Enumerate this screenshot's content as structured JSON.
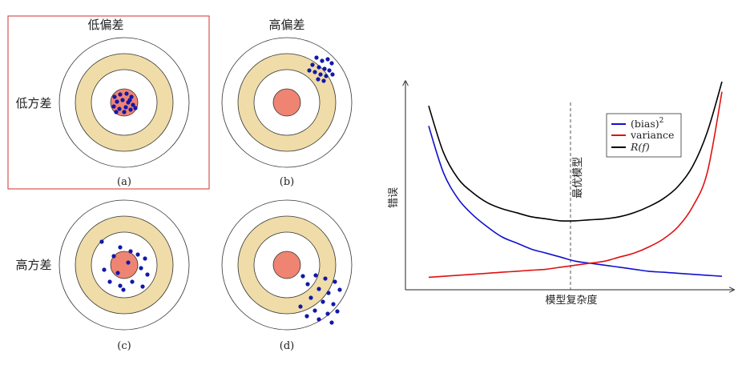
{
  "labels": {
    "col_low_bias": "低偏差",
    "col_high_bias": "高偏差",
    "row_low_variance": "低方差",
    "row_high_variance": "高方差",
    "cap_a": "(a)",
    "cap_b": "(b)",
    "cap_c": "(c)",
    "cap_d": "(d)"
  },
  "chart": {
    "ylabel": "错误",
    "xlabel": "模型复杂度",
    "optimal_label": "最优模型",
    "legend": [
      "(bias)",
      "variance",
      "R(f)"
    ],
    "legend_superscript": "2"
  },
  "colors": {
    "target_fill": "#efdca8",
    "bullseye": "#ef8472",
    "dot": "#1118a8",
    "frame": "#d9534f",
    "bias_line": "#1010d0",
    "variance_line": "#e01010",
    "risk_line": "#000000"
  },
  "chart_data": {
    "type": "line",
    "xlabel": "模型复杂度",
    "ylabel": "错误",
    "x": [
      0.0,
      0.05,
      0.1,
      0.15,
      0.2,
      0.25,
      0.3,
      0.35,
      0.4,
      0.45,
      0.5,
      0.55,
      0.6,
      0.65,
      0.7,
      0.75,
      0.8,
      0.85,
      0.9,
      0.95,
      1.0
    ],
    "series": [
      {
        "name": "(bias)²",
        "values": [
          0.78,
          0.55,
          0.42,
          0.34,
          0.28,
          0.23,
          0.2,
          0.17,
          0.15,
          0.13,
          0.11,
          0.1,
          0.09,
          0.08,
          0.07,
          0.06,
          0.055,
          0.05,
          0.045,
          0.04,
          0.035
        ]
      },
      {
        "name": "variance",
        "values": [
          0.03,
          0.035,
          0.04,
          0.045,
          0.05,
          0.055,
          0.06,
          0.065,
          0.07,
          0.08,
          0.09,
          0.1,
          0.11,
          0.13,
          0.15,
          0.18,
          0.22,
          0.28,
          0.38,
          0.55,
          0.95
        ]
      },
      {
        "name": "R(f)",
        "values": [
          0.88,
          0.65,
          0.52,
          0.45,
          0.4,
          0.37,
          0.35,
          0.33,
          0.32,
          0.31,
          0.31,
          0.315,
          0.32,
          0.33,
          0.35,
          0.38,
          0.42,
          0.48,
          0.58,
          0.75,
          1.0
        ]
      }
    ],
    "optimal_x": 0.5,
    "grid": false,
    "legend": "top-right"
  }
}
